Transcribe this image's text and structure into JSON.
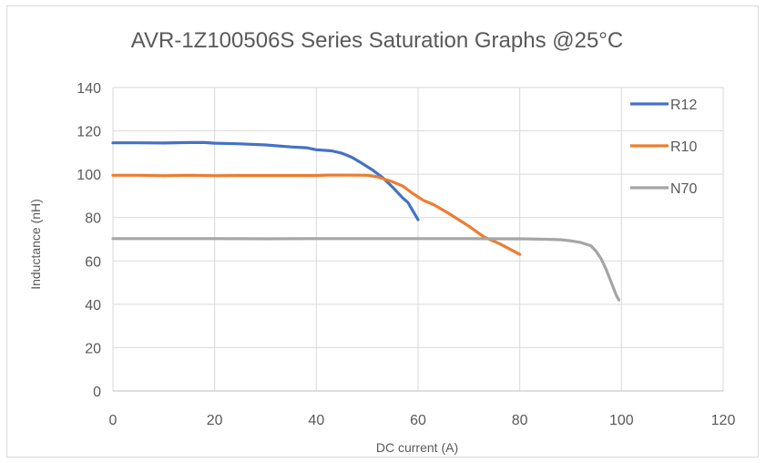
{
  "chart_data": {
    "type": "line",
    "title": "AVR-1Z100506S Series Saturation Graphs @25°C",
    "xlabel": "DC current (A)",
    "ylabel": "Inductance (nH)",
    "xlim": [
      0,
      120
    ],
    "ylim": [
      0,
      140
    ],
    "x_ticks": [
      0,
      20,
      40,
      60,
      80,
      100,
      120
    ],
    "y_ticks": [
      0,
      20,
      40,
      60,
      80,
      100,
      120,
      140
    ],
    "grid": true,
    "legend_position": "right",
    "series": [
      {
        "name": "R12",
        "color": "#4472c4",
        "points": [
          [
            0,
            114.5
          ],
          [
            5,
            114.5
          ],
          [
            10,
            114.4
          ],
          [
            15,
            114.6
          ],
          [
            18,
            114.6
          ],
          [
            20,
            114.3
          ],
          [
            25,
            114
          ],
          [
            30,
            113.5
          ],
          [
            35,
            112.6
          ],
          [
            38,
            112.2
          ],
          [
            40,
            111.3
          ],
          [
            43,
            110.8
          ],
          [
            45,
            109.7
          ],
          [
            47,
            107.8
          ],
          [
            49,
            105
          ],
          [
            51,
            102
          ],
          [
            53,
            98.5
          ],
          [
            55,
            94
          ],
          [
            57,
            89
          ],
          [
            58,
            87
          ],
          [
            59,
            83
          ],
          [
            60,
            79
          ]
        ]
      },
      {
        "name": "R10",
        "color": "#ed7d31",
        "points": [
          [
            0,
            99.5
          ],
          [
            5,
            99.5
          ],
          [
            10,
            99.3
          ],
          [
            15,
            99.5
          ],
          [
            20,
            99.3
          ],
          [
            25,
            99.4
          ],
          [
            30,
            99.4
          ],
          [
            35,
            99.4
          ],
          [
            40,
            99.4
          ],
          [
            42,
            99.6
          ],
          [
            45,
            99.6
          ],
          [
            50,
            99.5
          ],
          [
            52,
            98.8
          ],
          [
            55,
            96.5
          ],
          [
            57,
            94.5
          ],
          [
            59,
            91
          ],
          [
            61,
            88
          ],
          [
            63,
            86
          ],
          [
            66,
            82
          ],
          [
            70,
            76
          ],
          [
            73,
            71
          ],
          [
            76,
            68
          ],
          [
            80,
            63
          ]
        ]
      },
      {
        "name": "N70",
        "color": "#a5a5a5",
        "points": [
          [
            0,
            70.3
          ],
          [
            10,
            70.3
          ],
          [
            20,
            70.3
          ],
          [
            30,
            70.2
          ],
          [
            40,
            70.3
          ],
          [
            50,
            70.3
          ],
          [
            60,
            70.3
          ],
          [
            70,
            70.3
          ],
          [
            75,
            70.2
          ],
          [
            80,
            70.2
          ],
          [
            85,
            70
          ],
          [
            88,
            69.8
          ],
          [
            90,
            69.3
          ],
          [
            92,
            68.5
          ],
          [
            94,
            67
          ],
          [
            95,
            64.5
          ],
          [
            96,
            61
          ],
          [
            97,
            56
          ],
          [
            98,
            50
          ],
          [
            99,
            44
          ],
          [
            99.5,
            42
          ]
        ]
      }
    ]
  }
}
